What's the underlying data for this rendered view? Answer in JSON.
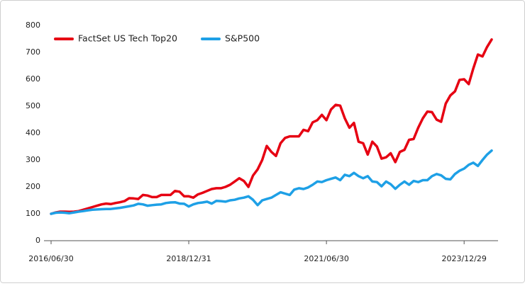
{
  "chart_data": {
    "type": "line",
    "categories": [
      "2016/06/30",
      null,
      null,
      null,
      null,
      null,
      null,
      null,
      null,
      null,
      null,
      null,
      null,
      null,
      null,
      null,
      null,
      null,
      null,
      null,
      null,
      null,
      null,
      null,
      null,
      null,
      null,
      null,
      null,
      null,
      "2018/12/31",
      null,
      null,
      null,
      null,
      null,
      null,
      null,
      null,
      null,
      null,
      null,
      null,
      null,
      null,
      null,
      null,
      null,
      null,
      null,
      null,
      null,
      null,
      null,
      null,
      null,
      null,
      null,
      null,
      null,
      "2021/06/30",
      null,
      null,
      null,
      null,
      null,
      null,
      null,
      null,
      null,
      null,
      null,
      null,
      null,
      null,
      null,
      null,
      null,
      null,
      null,
      null,
      null,
      null,
      null,
      null,
      null,
      null,
      null,
      null,
      null,
      "2023/12/29",
      null,
      null,
      null,
      null,
      null,
      null
    ],
    "series": [
      {
        "name": "FactSet US Tech Top20",
        "color": "#e60012",
        "values": [
          100,
          105,
          108,
          108,
          107,
          108,
          110,
          115,
          120,
          125,
          130,
          135,
          138,
          136,
          140,
          143,
          147,
          158,
          157,
          155,
          170,
          168,
          162,
          162,
          170,
          170,
          170,
          185,
          182,
          165,
          165,
          160,
          172,
          178,
          185,
          192,
          195,
          195,
          200,
          208,
          220,
          232,
          222,
          200,
          242,
          265,
          300,
          352,
          330,
          315,
          362,
          382,
          388,
          388,
          388,
          412,
          407,
          440,
          448,
          468,
          448,
          488,
          505,
          502,
          455,
          420,
          438,
          368,
          362,
          320,
          368,
          350,
          305,
          310,
          325,
          292,
          330,
          338,
          375,
          378,
          420,
          455,
          480,
          478,
          450,
          442,
          510,
          540,
          555,
          598,
          600,
          582,
          640,
          692,
          685,
          720,
          748
        ]
      },
      {
        "name": "S&P500",
        "color": "#1ea0e6",
        "values": [
          100,
          104,
          105,
          104,
          102,
          105,
          108,
          110,
          113,
          115,
          116,
          117,
          118,
          118,
          120,
          122,
          125,
          128,
          131,
          137,
          135,
          130,
          132,
          134,
          135,
          140,
          142,
          143,
          138,
          137,
          127,
          135,
          140,
          142,
          145,
          138,
          148,
          147,
          145,
          150,
          152,
          157,
          160,
          165,
          152,
          132,
          150,
          155,
          160,
          170,
          180,
          175,
          170,
          190,
          195,
          192,
          198,
          208,
          220,
          218,
          225,
          230,
          235,
          225,
          245,
          240,
          252,
          240,
          232,
          240,
          220,
          218,
          202,
          220,
          210,
          193,
          208,
          220,
          208,
          222,
          218,
          225,
          225,
          240,
          248,
          243,
          230,
          228,
          248,
          260,
          268,
          282,
          290,
          278,
          300,
          320,
          335
        ]
      }
    ],
    "ylim": [
      0,
      800
    ],
    "yticks": [
      0,
      100,
      200,
      300,
      400,
      500,
      600,
      700,
      800
    ],
    "grid": false,
    "legend": "top-left"
  }
}
